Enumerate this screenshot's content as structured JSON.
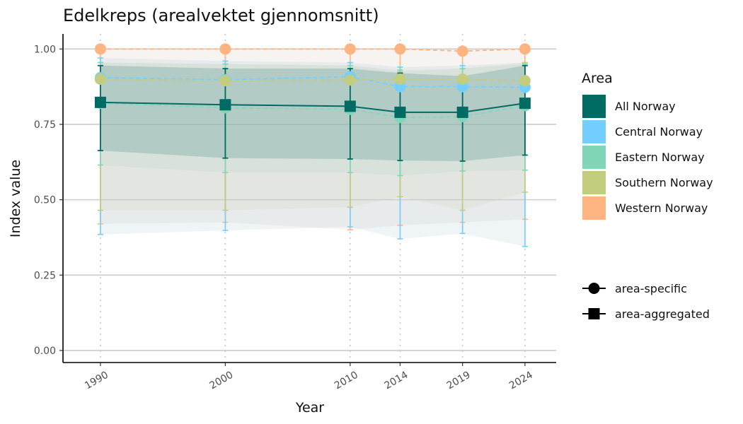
{
  "chart_data": {
    "type": "line",
    "title": "Edelkreps (arealvektet gjennomsnitt)",
    "xlabel": "Year",
    "ylabel": "Index value",
    "x": [
      1990,
      2000,
      2010,
      2014,
      2019,
      2024
    ],
    "x_tick_labels": [
      "1990",
      "2000",
      "2010",
      "2014",
      "2019",
      "2024"
    ],
    "ylim": [
      -0.04,
      1.05
    ],
    "y_ticks": [
      0.0,
      0.25,
      0.5,
      0.75,
      1.0
    ],
    "y_tick_labels": [
      "0.00",
      "0.25",
      "0.50",
      "0.75",
      "1.00"
    ],
    "legend": {
      "title": "Area",
      "placement": "right",
      "shape_entries": [
        "area-specific",
        "area-aggregated"
      ]
    },
    "series": [
      {
        "name": "Western Norway",
        "color": "#FFB482",
        "marker": "circle",
        "dashed": true,
        "values": [
          1.0,
          1.0,
          1.0,
          1.0,
          0.993,
          1.0
        ],
        "lower": [
          0.42,
          0.425,
          0.4,
          0.415,
          0.425,
          0.435
        ],
        "upper": [
          1.0,
          1.0,
          1.0,
          1.0,
          1.0,
          1.0
        ]
      },
      {
        "name": "Central Norway",
        "color": "#72CFFF",
        "marker": "circle",
        "dashed": true,
        "values": [
          0.905,
          0.898,
          0.908,
          0.875,
          0.875,
          0.873
        ],
        "lower": [
          0.385,
          0.398,
          0.41,
          0.37,
          0.388,
          0.345
        ],
        "upper": [
          0.97,
          0.96,
          0.955,
          0.94,
          0.945,
          0.955
        ]
      },
      {
        "name": "Southern Norway",
        "color": "#C4CC7E",
        "marker": "circle",
        "dashed": true,
        "values": [
          0.9,
          0.895,
          0.897,
          0.9,
          0.9,
          0.895
        ],
        "lower": [
          0.465,
          0.465,
          0.475,
          0.51,
          0.465,
          0.525
        ],
        "upper": [
          0.955,
          0.95,
          0.945,
          0.925,
          0.935,
          0.955
        ]
      },
      {
        "name": "Eastern Norway",
        "color": "#82D6B8",
        "marker": "circle",
        "dashed": true,
        "values": [
          0.82,
          0.805,
          0.8,
          0.773,
          0.776,
          0.812
        ],
        "lower": [
          0.615,
          0.59,
          0.59,
          0.58,
          0.595,
          0.598
        ],
        "upper": [
          0.955,
          0.95,
          0.945,
          0.93,
          0.935,
          0.95
        ]
      },
      {
        "name": "All Norway",
        "color": "#006B63",
        "marker": "square",
        "dashed": false,
        "values": [
          0.823,
          0.815,
          0.81,
          0.79,
          0.79,
          0.82
        ],
        "lower": [
          0.663,
          0.638,
          0.635,
          0.63,
          0.628,
          0.648
        ],
        "upper": [
          0.945,
          0.935,
          0.935,
          0.92,
          0.91,
          0.945
        ]
      }
    ]
  }
}
